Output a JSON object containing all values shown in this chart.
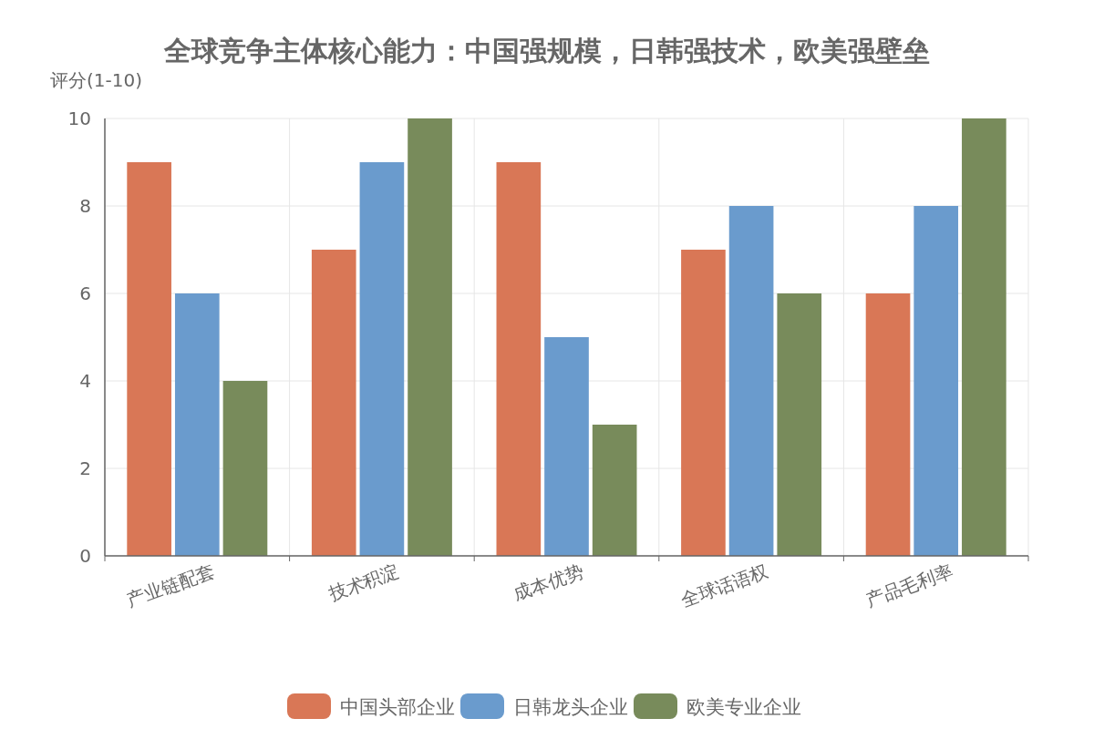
{
  "chart_data": {
    "type": "bar",
    "title": "全球竞争主体核心能力：中国强规模，日韩强技术，欧美强壁垒",
    "ylabel": "评分(1-10)",
    "categories": [
      "产业链配套",
      "技术积淀",
      "成本优势",
      "全球话语权",
      "产品毛利率"
    ],
    "series": [
      {
        "name": "中国头部企业",
        "color": "#d97756",
        "values": [
          9,
          7,
          9,
          7,
          6
        ]
      },
      {
        "name": "日韩龙头企业",
        "color": "#6a9bcd",
        "values": [
          6,
          9,
          5,
          8,
          8
        ]
      },
      {
        "name": "欧美专业企业",
        "color": "#788b5b",
        "values": [
          4,
          10,
          3,
          6,
          10
        ]
      }
    ],
    "ylim": [
      0,
      10
    ],
    "yticks": [
      0,
      2,
      4,
      6,
      8,
      10
    ],
    "grid": true,
    "legend": "bottom"
  }
}
